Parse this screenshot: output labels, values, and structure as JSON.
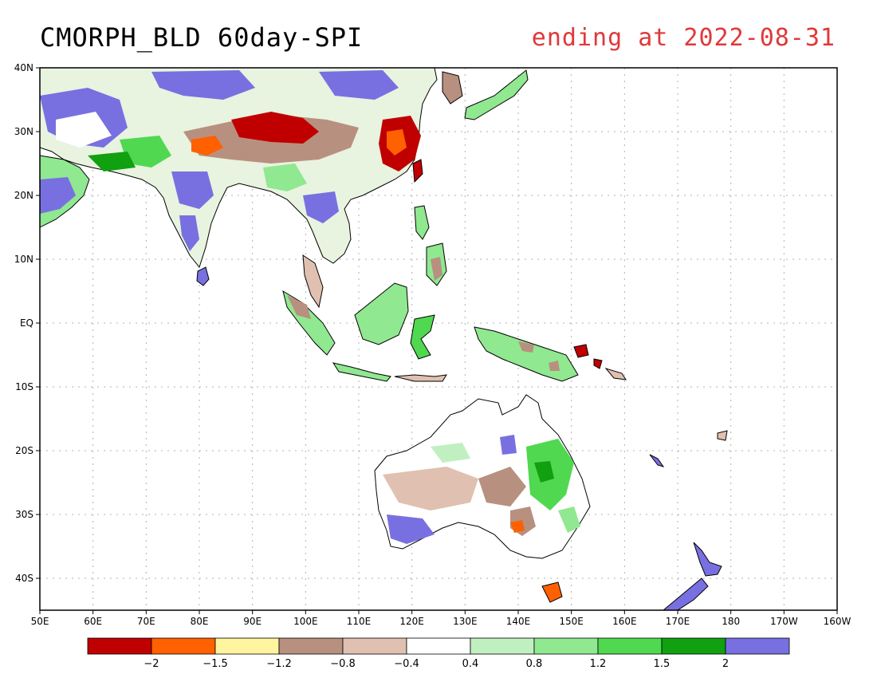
{
  "title": {
    "left": "CMORPH_BLD 60day-SPI",
    "right": "ending at 2022-08-31"
  },
  "map": {
    "lon_labels": [
      "50E",
      "60E",
      "70E",
      "80E",
      "90E",
      "100E",
      "110E",
      "120E",
      "130E",
      "140E",
      "150E",
      "160E",
      "170E",
      "180",
      "170W",
      "160W"
    ],
    "lat_labels": [
      "40N",
      "30N",
      "20N",
      "10N",
      "EQ",
      "10S",
      "20S",
      "30S",
      "40S"
    ],
    "colors": {
      "land_outline": "#000000",
      "grid": "#b0b0b0"
    }
  },
  "colorbar": {
    "colors": [
      "#c00000",
      "#ff6000",
      "#fff4a0",
      "#b89080",
      "#e0c0b0",
      "#ffffff",
      "#c0f0c0",
      "#90e890",
      "#50d850",
      "#10a010",
      "#7870e0"
    ],
    "labels": [
      "-2",
      "-1.5",
      "-1.2",
      "-0.8",
      "-0.4",
      "0.4",
      "0.8",
      "1.2",
      "1.5",
      "2"
    ]
  }
}
